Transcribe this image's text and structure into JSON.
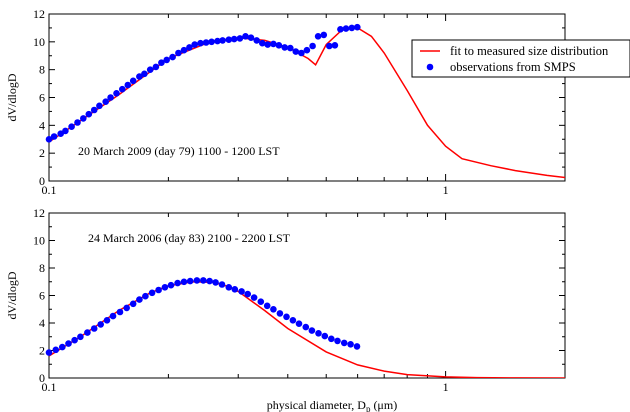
{
  "colors": {
    "fit": "#ff0000",
    "observations": "#0000ff",
    "axis": "#000000"
  },
  "legend": {
    "fit_label": "fit to measured size distribution",
    "obs_label": "observations from SMPS"
  },
  "xlabel": {
    "text": "physical diameter, D",
    "subscript": "p",
    "unit": " (μm)"
  },
  "chart_data": [
    {
      "type": "line",
      "annotation": "20 March 2009 (day 79) 1100 - 1200 LST",
      "ylabel": "dV/dlogD",
      "xscale": "log",
      "xlim": [
        0.1,
        2.0
      ],
      "ylim": [
        0,
        12
      ],
      "yticks": [
        0,
        2,
        4,
        6,
        8,
        10,
        12
      ],
      "xtick_labels": [
        "0.1",
        "1"
      ],
      "legend": "top-right",
      "series": [
        {
          "name": "fit to measured size distribution",
          "style": "line",
          "x": [
            0.1,
            0.15,
            0.2,
            0.25,
            0.3,
            0.35,
            0.4,
            0.45,
            0.47,
            0.5,
            0.55,
            0.6,
            0.65,
            0.7,
            0.8,
            0.9,
            1.0,
            1.1,
            1.3,
            1.5,
            1.8,
            2.0
          ],
          "y": [
            2.8,
            6.2,
            8.8,
            9.9,
            10.3,
            10.1,
            9.6,
            8.8,
            8.35,
            9.8,
            10.9,
            11.0,
            10.4,
            9.2,
            6.5,
            4.0,
            2.5,
            1.6,
            1.1,
            0.75,
            0.4,
            0.25
          ]
        },
        {
          "name": "observations from SMPS",
          "style": "markers",
          "x": [
            0.1,
            0.103,
            0.107,
            0.11,
            0.114,
            0.118,
            0.122,
            0.126,
            0.13,
            0.134,
            0.139,
            0.143,
            0.148,
            0.153,
            0.158,
            0.163,
            0.169,
            0.174,
            0.18,
            0.186,
            0.192,
            0.198,
            0.205,
            0.212,
            0.219,
            0.226,
            0.233,
            0.241,
            0.249,
            0.257,
            0.266,
            0.274,
            0.284,
            0.293,
            0.303,
            0.313,
            0.323,
            0.334,
            0.345,
            0.356,
            0.368,
            0.38,
            0.393,
            0.406,
            0.419,
            0.433,
            0.447,
            0.462,
            0.477,
            0.493,
            0.509,
            0.526,
            0.543,
            0.561,
            0.58,
            0.599
          ],
          "y": [
            3.0,
            3.2,
            3.4,
            3.6,
            3.9,
            4.2,
            4.5,
            4.8,
            5.1,
            5.4,
            5.7,
            6.0,
            6.3,
            6.6,
            6.9,
            7.2,
            7.5,
            7.7,
            8.0,
            8.2,
            8.5,
            8.7,
            8.9,
            9.2,
            9.4,
            9.6,
            9.8,
            9.9,
            9.95,
            10.0,
            10.05,
            10.1,
            10.15,
            10.2,
            10.25,
            10.4,
            10.3,
            10.1,
            9.9,
            9.8,
            9.85,
            9.75,
            9.6,
            9.55,
            9.3,
            9.2,
            9.4,
            9.7,
            10.4,
            10.5,
            9.7,
            9.75,
            10.9,
            10.95,
            11.0,
            11.05
          ]
        }
      ]
    },
    {
      "type": "line",
      "annotation": "24 March 2006 (day 83) 2100 - 2200 LST",
      "ylabel": "dV/dlogD",
      "xscale": "log",
      "xlim": [
        0.1,
        2.0
      ],
      "ylim": [
        0,
        12
      ],
      "yticks": [
        0,
        2,
        4,
        6,
        8,
        10,
        12
      ],
      "xtick_labels": [
        "0.1",
        "1"
      ],
      "series": [
        {
          "name": "fit to measured size distribution",
          "style": "line",
          "x": [
            0.1,
            0.12,
            0.15,
            0.18,
            0.2,
            0.23,
            0.26,
            0.28,
            0.3,
            0.35,
            0.4,
            0.5,
            0.6,
            0.7,
            0.8,
            1.0,
            1.2,
            1.5,
            2.0
          ],
          "y": [
            1.6,
            3.0,
            4.9,
            6.2,
            6.7,
            7.0,
            6.95,
            6.7,
            6.3,
            4.9,
            3.6,
            1.9,
            0.95,
            0.5,
            0.25,
            0.08,
            0.03,
            0.01,
            0.0
          ]
        },
        {
          "name": "observations from SMPS",
          "style": "markers",
          "x": [
            0.1,
            0.104,
            0.108,
            0.112,
            0.116,
            0.12,
            0.125,
            0.13,
            0.135,
            0.14,
            0.145,
            0.151,
            0.157,
            0.163,
            0.169,
            0.175,
            0.182,
            0.189,
            0.196,
            0.203,
            0.211,
            0.219,
            0.227,
            0.236,
            0.245,
            0.254,
            0.263,
            0.273,
            0.284,
            0.294,
            0.306,
            0.317,
            0.329,
            0.342,
            0.355,
            0.368,
            0.382,
            0.397,
            0.412,
            0.427,
            0.444,
            0.46,
            0.478,
            0.496,
            0.515,
            0.534,
            0.555,
            0.576,
            0.598
          ],
          "y": [
            1.85,
            2.05,
            2.25,
            2.5,
            2.75,
            3.0,
            3.3,
            3.6,
            3.9,
            4.2,
            4.5,
            4.8,
            5.1,
            5.4,
            5.7,
            5.95,
            6.2,
            6.4,
            6.6,
            6.75,
            6.9,
            7.0,
            7.05,
            7.1,
            7.1,
            7.05,
            6.95,
            6.8,
            6.6,
            6.45,
            6.3,
            6.1,
            5.85,
            5.55,
            5.25,
            5.0,
            4.7,
            4.45,
            4.2,
            3.95,
            3.7,
            3.45,
            3.25,
            3.05,
            2.85,
            2.7,
            2.55,
            2.45,
            2.3
          ]
        }
      ]
    }
  ]
}
